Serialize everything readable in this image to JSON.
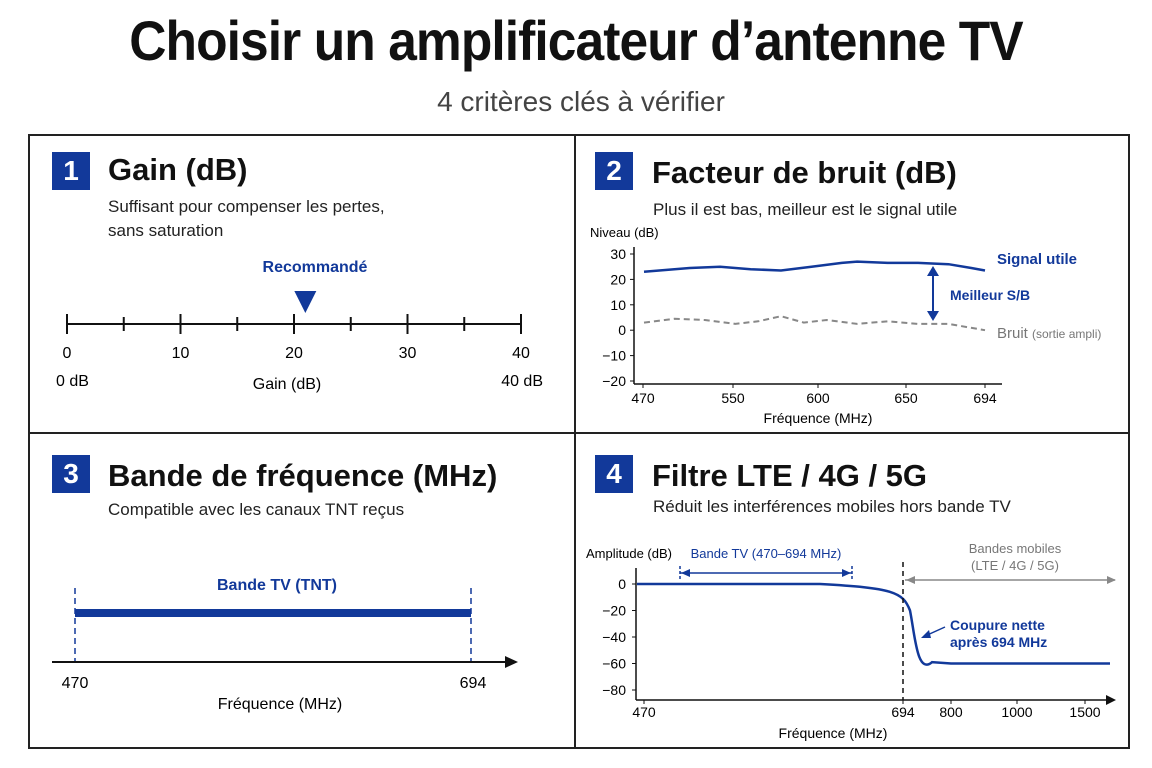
{
  "header": {
    "title": "Choisir un amplificateur d’antenne TV",
    "subtitle": "4 critères clés à vérifier"
  },
  "colors": {
    "accent": "#12399a",
    "noise": "#888888",
    "text": "#111111"
  },
  "panels": [
    {
      "number": "1",
      "title": "Gain (dB)",
      "desc_line1": "Suffisant pour compenser les pertes,",
      "desc_line2": "sans saturation",
      "recommended_label": "Recommandé",
      "recommended_value": 21,
      "axis_ticks": [
        "0",
        "10",
        "20",
        "30",
        "40"
      ],
      "min_label": "0 dB",
      "max_label": "40 dB",
      "axis_label": "Gain (dB)"
    },
    {
      "number": "2",
      "title": "Facteur de bruit (dB)",
      "desc": "Plus il est bas, meilleur est le signal utile",
      "chart_data": {
        "type": "line",
        "ylabel": "Niveau (dB)",
        "xlabel": "Fréquence (MHz)",
        "x_ticks": [
          "470",
          "550",
          "600",
          "650",
          "694"
        ],
        "y_ticks": [
          "30",
          "20",
          "10",
          "0",
          "−10",
          "−20"
        ],
        "xlim": [
          470,
          694
        ],
        "ylim": [
          -20,
          30
        ],
        "series": [
          {
            "name": "Signal utile",
            "x": [
              470,
              500,
              520,
              540,
              560,
              580,
              600,
              610,
              630,
              650,
              670,
              685,
              694
            ],
            "values": [
              23,
              24.5,
              25,
              24,
              23.5,
              25,
              26.5,
              27,
              26.5,
              26.5,
              26,
              24.5,
              23.5
            ]
          },
          {
            "name": "Bruit",
            "x": [
              470,
              490,
              510,
              530,
              545,
              560,
              575,
              590,
              610,
              630,
              650,
              670,
              694
            ],
            "values": [
              3,
              4.5,
              4,
              2.5,
              3.5,
              5.5,
              3,
              4,
              2.5,
              3.5,
              2.5,
              2.5,
              0
            ]
          }
        ],
        "annotation": "Meilleur S/B",
        "signal_label": "Signal utile",
        "noise_label": "Bruit",
        "noise_suffix": "(sortie ampli)"
      }
    },
    {
      "number": "3",
      "title": "Bande de fréquence (MHz)",
      "desc": "Compatible avec les canaux TNT reçus",
      "band_label": "Bande TV (TNT)",
      "band_start": "470",
      "band_end": "694",
      "axis_label": "Fréquence (MHz)"
    },
    {
      "number": "4",
      "title": "Filtre LTE / 4G / 5G",
      "desc": "Réduit les interférences mobiles hors bande TV",
      "chart_data": {
        "type": "line",
        "ylabel": "Amplitude (dB)",
        "xlabel": "Fréquence (MHz)",
        "x_ticks": [
          "470",
          "694",
          "800",
          "1000",
          "1500"
        ],
        "y_ticks": [
          "0",
          "−20",
          "−40",
          "−60",
          "−80"
        ],
        "ylim": [
          -80,
          0
        ],
        "series": [
          {
            "x": [
              "470",
              "600",
              "694",
              "700",
              "750",
              "800",
              "1000",
              "1500"
            ],
            "values": [
              0,
              0,
              -3,
              -20,
              -55,
              -60,
              -60,
              -60
            ]
          }
        ],
        "tv_band_label": "Bande TV (470–694 MHz)",
        "mobile_label_line1": "Bandes mobiles",
        "mobile_label_line2": "(LTE / 4G / 5G)",
        "cutoff_line1": "Coupure nette",
        "cutoff_line2": "après 694 MHz"
      }
    }
  ]
}
